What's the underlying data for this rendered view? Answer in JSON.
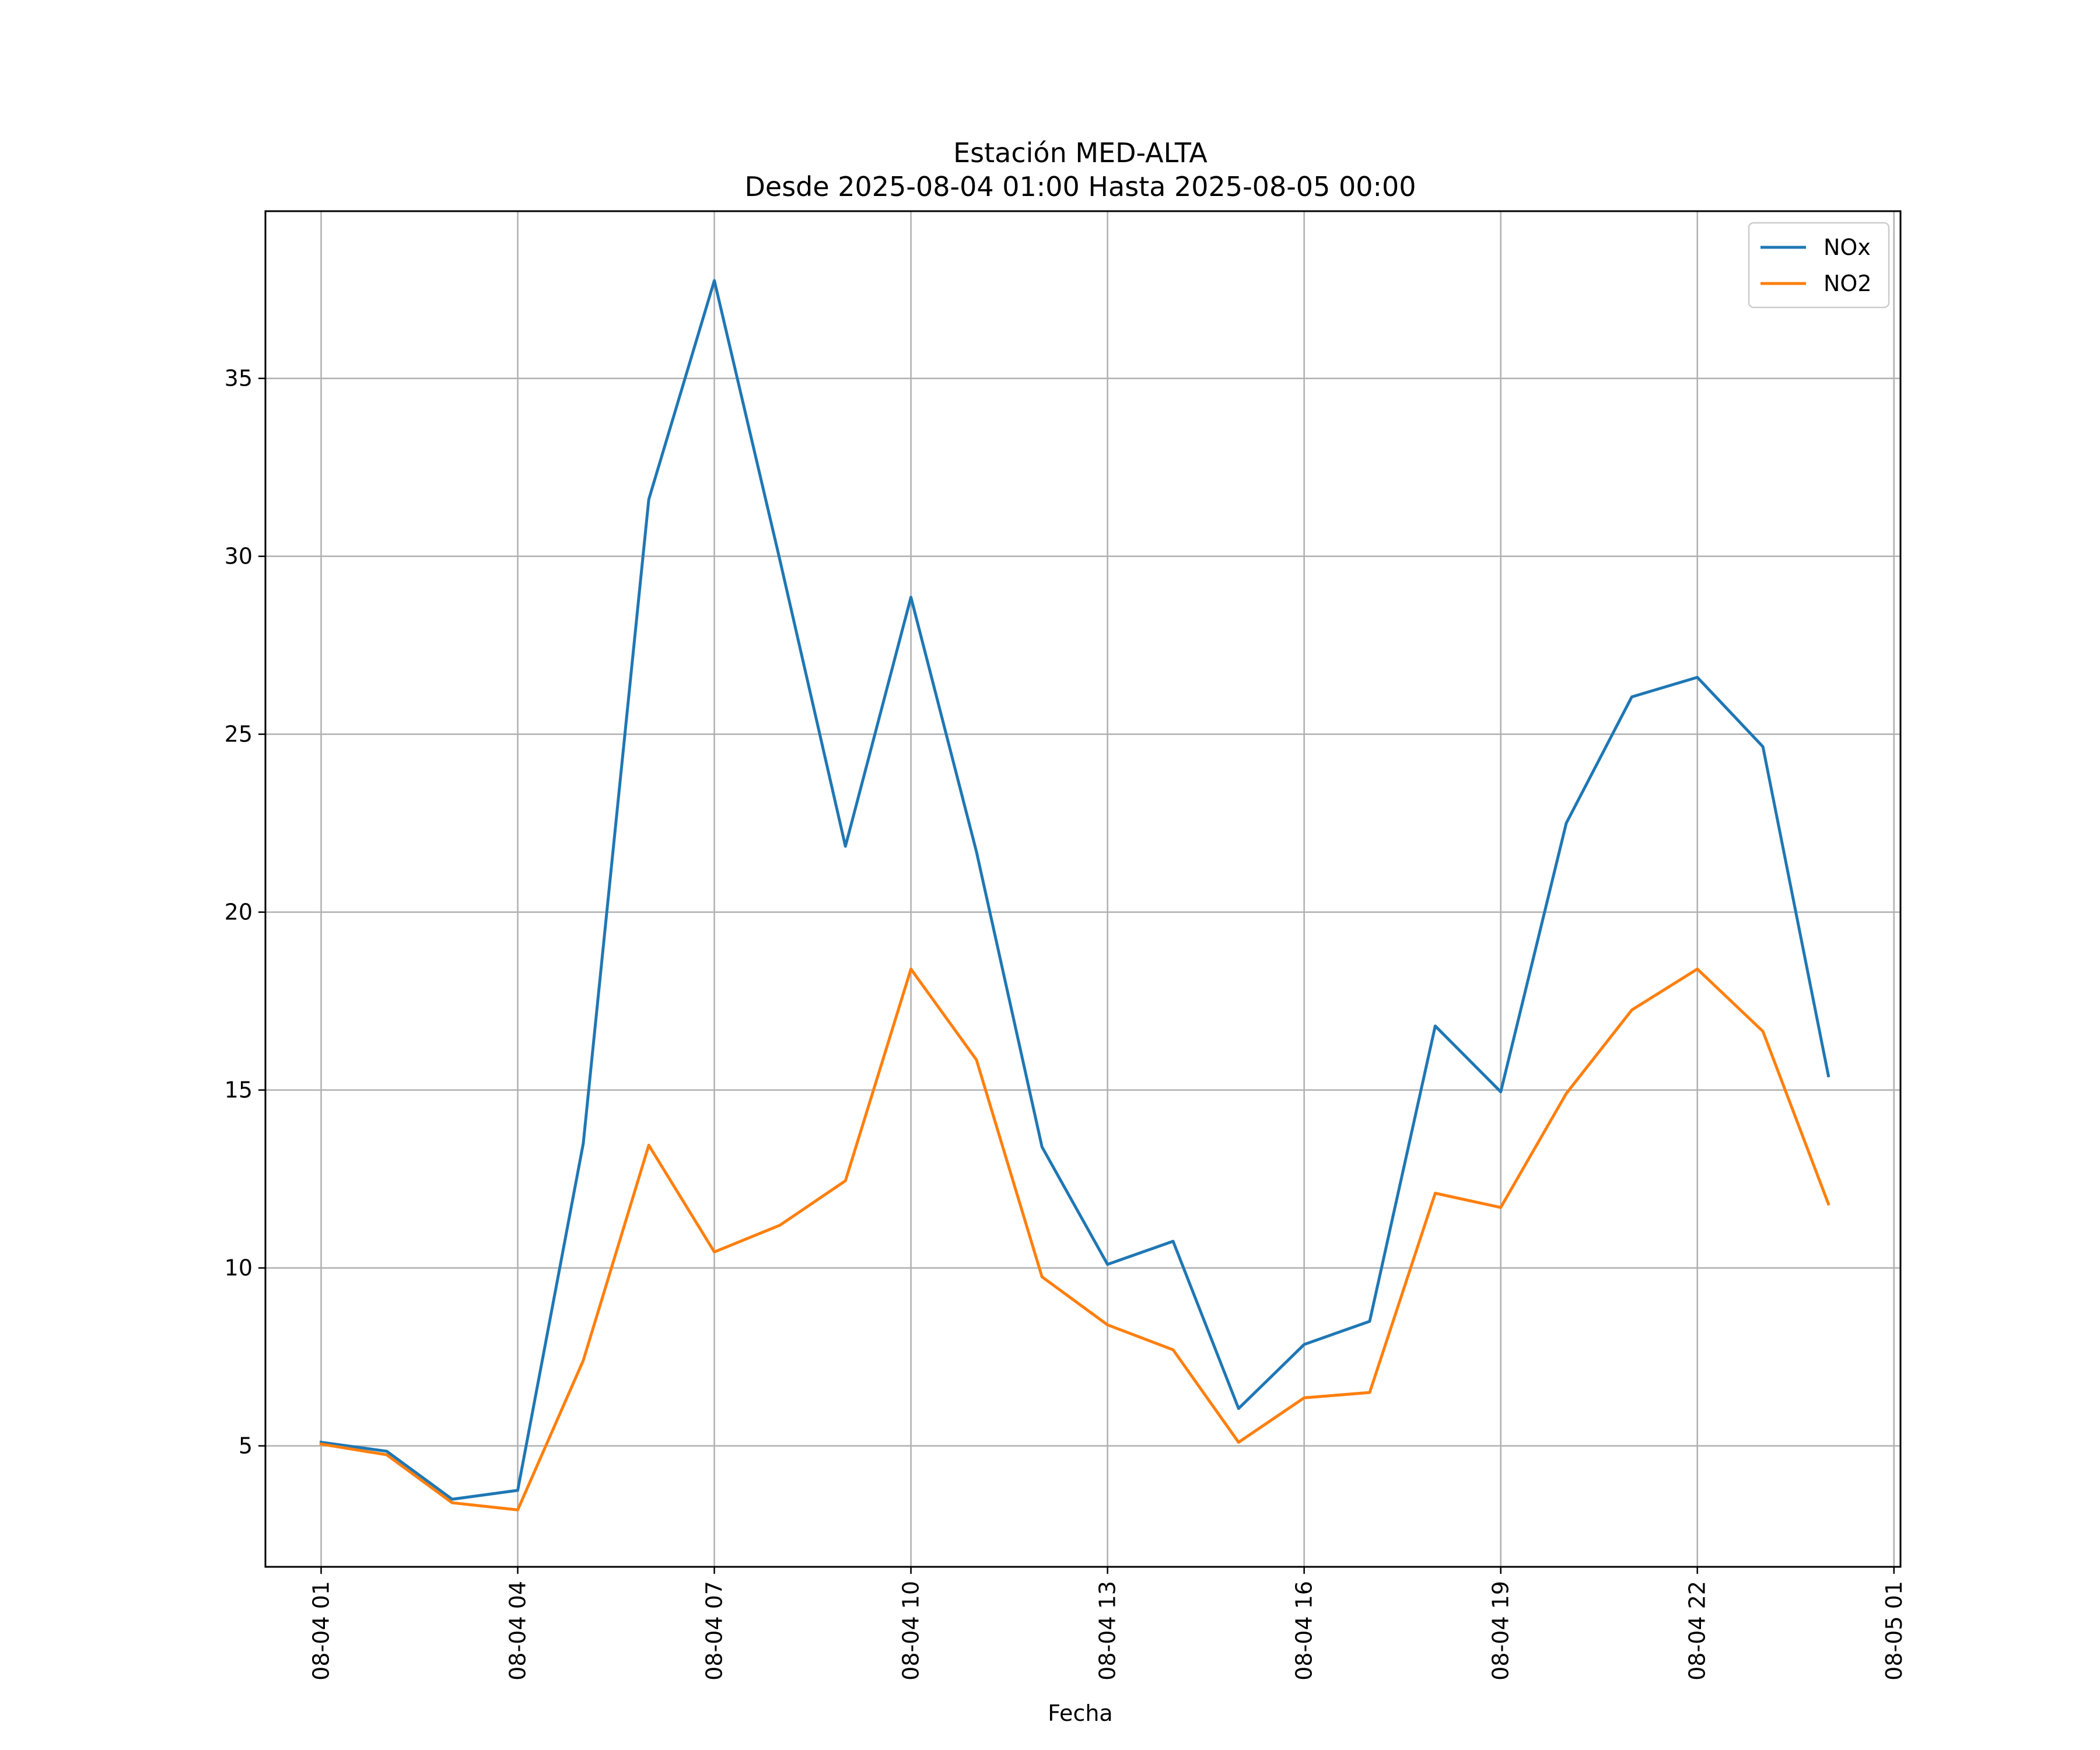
{
  "chart_data": {
    "type": "line",
    "title": "Estación MED-ALTA",
    "subtitle": "Desde 2025-08-04 01:00 Hasta 2025-08-05 00:00",
    "xlabel": "Fecha",
    "ylabel": "",
    "x": [
      "2025-08-04 01:00",
      "2025-08-04 02:00",
      "2025-08-04 03:00",
      "2025-08-04 04:00",
      "2025-08-04 05:00",
      "2025-08-04 06:00",
      "2025-08-04 07:00",
      "2025-08-04 08:00",
      "2025-08-04 09:00",
      "2025-08-04 10:00",
      "2025-08-04 11:00",
      "2025-08-04 12:00",
      "2025-08-04 13:00",
      "2025-08-04 14:00",
      "2025-08-04 15:00",
      "2025-08-04 16:00",
      "2025-08-04 17:00",
      "2025-08-04 18:00",
      "2025-08-04 19:00",
      "2025-08-04 20:00",
      "2025-08-04 21:00",
      "2025-08-04 22:00",
      "2025-08-04 23:00",
      "2025-08-05 00:00"
    ],
    "xlim": [
      "2025-08-04 00:09",
      "2025-08-05 01:06"
    ],
    "ylim": [
      1.6,
      39.7
    ],
    "x_ticks": [
      "08-04 01",
      "08-04 04",
      "08-04 07",
      "08-04 10",
      "08-04 13",
      "08-04 16",
      "08-04 19",
      "08-04 22",
      "08-05 01"
    ],
    "y_ticks": [
      5,
      10,
      15,
      20,
      25,
      30,
      35
    ],
    "grid": true,
    "legend_position": "top-right",
    "series": [
      {
        "name": "NOx",
        "color": "#1f77b4",
        "values": [
          5.1,
          4.85,
          3.5,
          3.75,
          13.5,
          31.6,
          37.75,
          29.9,
          21.85,
          28.85,
          21.7,
          13.4,
          10.1,
          10.75,
          6.05,
          7.85,
          8.5,
          16.8,
          14.95,
          22.5,
          26.05,
          26.6,
          24.65,
          15.4
        ]
      },
      {
        "name": "NO2",
        "color": "#ff7f0e",
        "values": [
          5.05,
          4.75,
          3.4,
          3.2,
          7.4,
          13.45,
          10.45,
          11.2,
          12.45,
          18.4,
          15.85,
          9.75,
          8.4,
          7.7,
          5.1,
          6.35,
          6.5,
          12.1,
          11.7,
          14.9,
          17.25,
          18.4,
          16.65,
          11.8
        ]
      }
    ]
  }
}
